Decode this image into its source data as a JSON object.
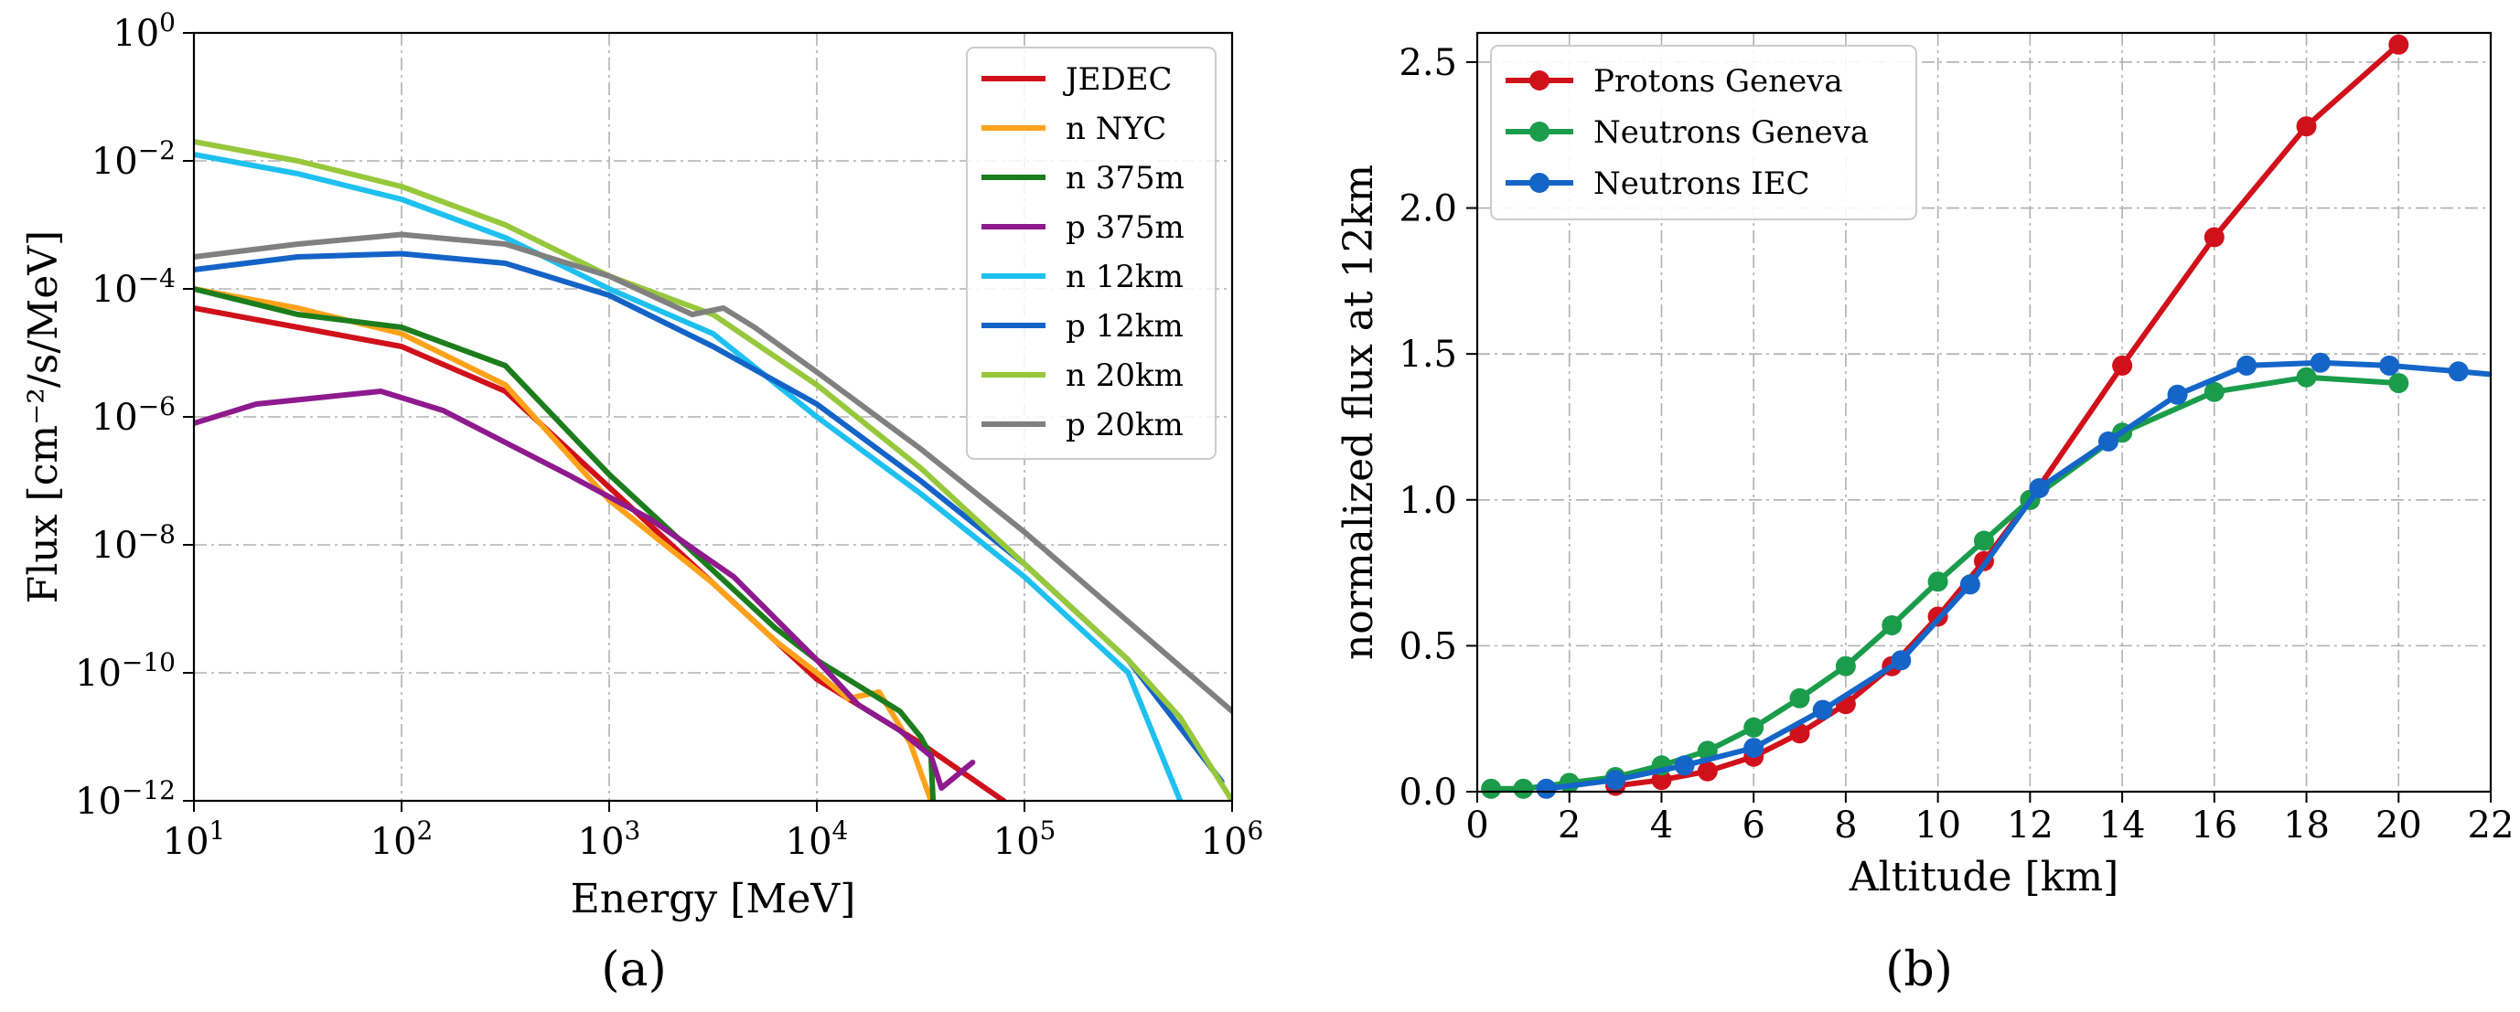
{
  "chart_data": [
    {
      "type": "line",
      "panel": "(a)",
      "xlabel": "Energy [MeV]",
      "ylabel": "Flux [cm⁻²/s/MeV]",
      "xscale": "log",
      "yscale": "log",
      "xlim_exp": [
        1,
        6
      ],
      "ylim_exp": [
        -12,
        0
      ],
      "xticks": [
        {
          "base": "10",
          "exp": "1"
        },
        {
          "base": "10",
          "exp": "2"
        },
        {
          "base": "10",
          "exp": "3"
        },
        {
          "base": "10",
          "exp": "4"
        },
        {
          "base": "10",
          "exp": "5"
        },
        {
          "base": "10",
          "exp": "6"
        }
      ],
      "yticks": [
        {
          "base": "10",
          "exp": "0"
        },
        {
          "base": "10",
          "exp": "−2"
        },
        {
          "base": "10",
          "exp": "−4"
        },
        {
          "base": "10",
          "exp": "−6"
        },
        {
          "base": "10",
          "exp": "−8"
        },
        {
          "base": "10",
          "exp": "−10"
        },
        {
          "base": "10",
          "exp": "−12"
        }
      ],
      "grid": true,
      "legend_position": "top-right",
      "series": [
        {
          "name": "JEDEC",
          "color": "#d0111b",
          "log10E": [
            1,
            1.5,
            2,
            2.5,
            3,
            3.5,
            4,
            4.5,
            4.9
          ],
          "log10F": [
            -4.3,
            -4.6,
            -4.9,
            -5.6,
            -7.1,
            -8.6,
            -10.1,
            -11.1,
            -12.0
          ]
        },
        {
          "name": "n NYC",
          "color": "#ffa21a",
          "log10E": [
            1,
            1.5,
            2,
            2.5,
            3,
            3.5,
            3.8,
            4.0,
            4.15,
            4.3,
            4.45,
            4.55
          ],
          "log10F": [
            -4.0,
            -4.3,
            -4.7,
            -5.5,
            -7.3,
            -8.6,
            -9.5,
            -10.0,
            -10.4,
            -10.3,
            -11.1,
            -12.0
          ]
        },
        {
          "name": "n 375m",
          "color": "#1c7d1c",
          "log10E": [
            1,
            1.5,
            2,
            2.5,
            3,
            3.5,
            3.8,
            4.0,
            4.2,
            4.4,
            4.5,
            4.55,
            4.56
          ],
          "log10F": [
            -4.0,
            -4.4,
            -4.6,
            -5.2,
            -6.9,
            -8.4,
            -9.3,
            -9.8,
            -10.2,
            -10.6,
            -11.0,
            -11.3,
            -12.0
          ]
        },
        {
          "name": "p 375m",
          "color": "#8e1a8e",
          "log10E": [
            1,
            1.3,
            1.6,
            1.9,
            2.2,
            2.5,
            2.8,
            3.2,
            3.6,
            4.0,
            4.2,
            4.4,
            4.55,
            4.6,
            4.75
          ],
          "log10F": [
            -6.1,
            -5.8,
            -5.7,
            -5.6,
            -5.9,
            -6.4,
            -6.9,
            -7.6,
            -8.5,
            -9.8,
            -10.5,
            -10.9,
            -11.3,
            -11.8,
            -11.4
          ]
        },
        {
          "name": "n 12km",
          "color": "#1ec0f0",
          "log10E": [
            1,
            1.5,
            2,
            2.5,
            3,
            3.5,
            4,
            4.5,
            5,
            5.5,
            5.75
          ],
          "log10F": [
            -1.9,
            -2.2,
            -2.6,
            -3.2,
            -4.0,
            -4.7,
            -6.0,
            -7.2,
            -8.5,
            -10.0,
            -12.0
          ]
        },
        {
          "name": "p 12km",
          "color": "#1463c7",
          "log10E": [
            1,
            1.5,
            2,
            2.5,
            3,
            3.5,
            4,
            4.5,
            5,
            5.5,
            5.95
          ],
          "log10F": [
            -3.7,
            -3.5,
            -3.45,
            -3.6,
            -4.1,
            -4.9,
            -5.8,
            -7.0,
            -8.3,
            -9.8,
            -11.7
          ]
        },
        {
          "name": "n 20km",
          "color": "#97c83c",
          "log10E": [
            1,
            1.5,
            2,
            2.5,
            3,
            3.5,
            4,
            4.5,
            5,
            5.5,
            5.75,
            6.0
          ],
          "log10F": [
            -1.7,
            -2.0,
            -2.4,
            -3.0,
            -3.8,
            -4.4,
            -5.5,
            -6.8,
            -8.3,
            -9.8,
            -10.7,
            -12.0
          ]
        },
        {
          "name": "p 20km",
          "color": "#808080",
          "log10E": [
            1,
            1.5,
            2,
            2.5,
            3,
            3.4,
            3.55,
            3.7,
            4,
            4.5,
            5,
            5.5,
            6.0
          ],
          "log10F": [
            -3.5,
            -3.3,
            -3.15,
            -3.3,
            -3.8,
            -4.4,
            -4.3,
            -4.6,
            -5.3,
            -6.5,
            -7.8,
            -9.2,
            -10.6
          ]
        }
      ]
    },
    {
      "type": "line",
      "panel": "(b)",
      "xlabel": "Altitude [km]",
      "ylabel": "normalized flux at 12km",
      "xlim": [
        0,
        22
      ],
      "ylim": [
        0,
        2.6
      ],
      "xticks": [
        "0",
        "2",
        "4",
        "6",
        "8",
        "10",
        "12",
        "14",
        "16",
        "18",
        "20",
        "22"
      ],
      "yticks": [
        "0.0",
        "0.5",
        "1.0",
        "1.5",
        "2.0",
        "2.5"
      ],
      "grid": true,
      "legend_position": "top-left",
      "series": [
        {
          "name": "Protons Geneva",
          "color": "#d0111b",
          "x": [
            3,
            4,
            5,
            6,
            7,
            8,
            9,
            10,
            11,
            12,
            14,
            16,
            18,
            20
          ],
          "y": [
            0.02,
            0.04,
            0.07,
            0.12,
            0.2,
            0.3,
            0.43,
            0.6,
            0.79,
            1.0,
            1.46,
            1.9,
            2.28,
            2.56
          ]
        },
        {
          "name": "Neutrons Geneva",
          "color": "#1a9c4a",
          "x": [
            0.3,
            1,
            2,
            3,
            4,
            5,
            6,
            7,
            8,
            9,
            10,
            11,
            12,
            14,
            16,
            18,
            20
          ],
          "y": [
            0.01,
            0.01,
            0.03,
            0.05,
            0.09,
            0.14,
            0.22,
            0.32,
            0.43,
            0.57,
            0.72,
            0.86,
            1.0,
            1.23,
            1.37,
            1.42,
            1.4
          ]
        },
        {
          "name": "Neutrons IEC",
          "color": "#1565c8",
          "x": [
            1.5,
            3,
            4.5,
            6,
            7.5,
            9.2,
            10.7,
            12.2,
            13.7,
            15.2,
            16.7,
            18.3,
            19.8,
            21.3,
            22
          ],
          "y": [
            0.01,
            0.04,
            0.09,
            0.15,
            0.28,
            0.45,
            0.71,
            1.04,
            1.2,
            1.36,
            1.46,
            1.47,
            1.46,
            1.44,
            1.43
          ]
        }
      ]
    }
  ]
}
